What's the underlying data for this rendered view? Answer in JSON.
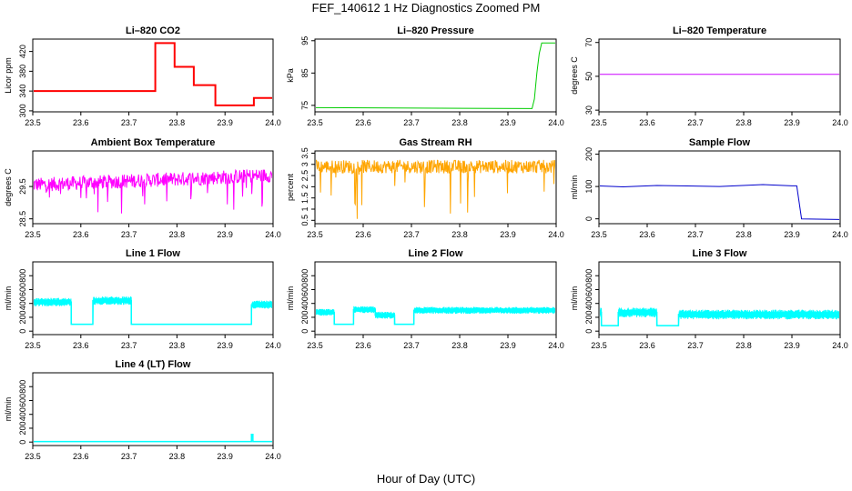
{
  "figure": {
    "title": "FEF_140612  1 Hz Diagnostics Zoomed PM",
    "xlabel": "Hour of Day (UTC)"
  },
  "chart_data": [
    {
      "type": "line",
      "title": "Li–820 CO2",
      "ylabel": "Licor ppm",
      "color": "#ff0000",
      "xlim": [
        23.5,
        24.0
      ],
      "xticks": [
        "23.5",
        "23.6",
        "23.7",
        "23.8",
        "23.9",
        "24.0"
      ],
      "ylim": [
        298,
        445
      ],
      "yticks": [
        300,
        340,
        380,
        420
      ],
      "series": [
        {
          "name": "CO2",
          "pattern": "step",
          "x": [
            23.5,
            23.755,
            23.755,
            23.795,
            23.795,
            23.835,
            23.835,
            23.88,
            23.88,
            23.96,
            23.96,
            24.0
          ],
          "y": [
            340,
            340,
            437,
            437,
            389,
            389,
            352,
            352,
            311,
            311,
            326,
            326
          ]
        }
      ]
    },
    {
      "type": "line",
      "title": "Li–820 Pressure",
      "ylabel": "kPa",
      "color": "#00cc00",
      "xlim": [
        23.5,
        24.0
      ],
      "xticks": [
        "23.5",
        "23.6",
        "23.7",
        "23.8",
        "23.9",
        "24.0"
      ],
      "ylim": [
        73,
        95.5
      ],
      "yticks": [
        75,
        85,
        95
      ],
      "series": [
        {
          "name": "Pressure",
          "pattern": "smooth",
          "x": [
            23.5,
            23.95,
            23.955,
            23.96,
            23.965,
            23.97,
            24.0
          ],
          "y": [
            74.3,
            74.0,
            77,
            85,
            91,
            94.3,
            94.3
          ]
        }
      ]
    },
    {
      "type": "line",
      "title": "Li–820 Temperature",
      "ylabel": "degrees C",
      "color": "#cc00ff",
      "xlim": [
        23.5,
        24.0
      ],
      "xticks": [
        "23.5",
        "23.6",
        "23.7",
        "23.8",
        "23.9",
        "24.0"
      ],
      "ylim": [
        29,
        72
      ],
      "yticks": [
        30,
        50,
        70
      ],
      "series": [
        {
          "name": "Temperature",
          "pattern": "smooth",
          "x": [
            23.5,
            24.0
          ],
          "y": [
            51.2,
            51.2
          ]
        }
      ]
    },
    {
      "type": "line",
      "title": "Ambient Box Temperature",
      "ylabel": "degrees C",
      "color": "#ff00ff",
      "xlim": [
        23.5,
        24.0
      ],
      "xticks": [
        "23.5",
        "23.6",
        "23.7",
        "23.8",
        "23.9",
        "24.0"
      ],
      "ylim": [
        28.35,
        30.6
      ],
      "yticks": [
        28.5,
        29.5
      ],
      "series": [
        {
          "name": "Box Temp",
          "pattern": "noise",
          "x": [
            23.5,
            24.0
          ],
          "y": [
            29.55,
            29.85
          ],
          "spread": 0.22,
          "spike_down": 0.9
        }
      ]
    },
    {
      "type": "line",
      "title": "Gas Stream RH",
      "ylabel": "percent",
      "color": "#ffa500",
      "xlim": [
        23.5,
        24.0
      ],
      "xticks": [
        "23.5",
        "23.6",
        "23.7",
        "23.8",
        "23.9",
        "24.0"
      ],
      "ylim": [
        0.35,
        3.6
      ],
      "yticks": [
        0.5,
        1.0,
        1.5,
        2.0,
        2.5,
        3.0,
        3.5
      ],
      "series": [
        {
          "name": "RH",
          "pattern": "noise",
          "x": [
            23.5,
            24.0
          ],
          "y": [
            2.9,
            2.9
          ],
          "spread": 0.3,
          "spike_down": 2.3
        }
      ]
    },
    {
      "type": "line",
      "title": "Sample Flow",
      "ylabel": "ml/min",
      "color": "#0000cc",
      "xlim": [
        23.5,
        24.0
      ],
      "xticks": [
        "23.5",
        "23.6",
        "23.7",
        "23.8",
        "23.9",
        "24.0"
      ],
      "ylim": [
        -15,
        210
      ],
      "yticks": [
        0,
        100,
        200
      ],
      "series": [
        {
          "name": "Sample Flow",
          "pattern": "smooth",
          "x": [
            23.5,
            23.55,
            23.62,
            23.75,
            23.84,
            23.9,
            23.91,
            23.92,
            24.0
          ],
          "y": [
            102,
            99,
            103,
            100,
            106,
            102,
            102,
            0,
            -2
          ]
        }
      ]
    },
    {
      "type": "line",
      "title": "Line 1 Flow",
      "ylabel": "ml/min",
      "color": "#00ffff",
      "xlim": [
        23.5,
        24.0
      ],
      "xticks": [
        "23.5",
        "23.6",
        "23.7",
        "23.8",
        "23.9",
        "24.0"
      ],
      "ylim": [
        -50,
        1000
      ],
      "yticks": [
        0,
        200,
        400,
        600,
        800
      ],
      "series": [
        {
          "name": "Line 1",
          "pattern": "step",
          "x": [
            23.5,
            23.58,
            23.58,
            23.625,
            23.625,
            23.705,
            23.705,
            23.955,
            23.955,
            24.0
          ],
          "y": [
            420,
            420,
            100,
            100,
            440,
            440,
            100,
            100,
            380,
            380
          ],
          "band": 60
        }
      ]
    },
    {
      "type": "line",
      "title": "Line 2 Flow",
      "ylabel": "ml/min",
      "color": "#00ffff",
      "xlim": [
        23.5,
        24.0
      ],
      "xticks": [
        "23.5",
        "23.6",
        "23.7",
        "23.8",
        "23.9",
        "24.0"
      ],
      "ylim": [
        -50,
        1000
      ],
      "yticks": [
        0,
        200,
        400,
        600,
        800
      ],
      "series": [
        {
          "name": "Line 2",
          "pattern": "step",
          "x": [
            23.5,
            23.54,
            23.54,
            23.58,
            23.58,
            23.625,
            23.625,
            23.665,
            23.665,
            23.705,
            23.705,
            24.0
          ],
          "y": [
            270,
            270,
            100,
            100,
            310,
            310,
            230,
            230,
            100,
            100,
            300,
            300
          ],
          "band": 50
        }
      ]
    },
    {
      "type": "line",
      "title": "Line 3 Flow",
      "ylabel": "ml/min",
      "color": "#00ffff",
      "xlim": [
        23.5,
        24.0
      ],
      "xticks": [
        "23.5",
        "23.6",
        "23.7",
        "23.8",
        "23.9",
        "24.0"
      ],
      "ylim": [
        -50,
        1000
      ],
      "yticks": [
        0,
        200,
        400,
        600,
        800
      ],
      "series": [
        {
          "name": "Line 3",
          "pattern": "step",
          "x": [
            23.5,
            23.505,
            23.505,
            23.54,
            23.54,
            23.62,
            23.62,
            23.665,
            23.665,
            24.0
          ],
          "y": [
            270,
            270,
            80,
            80,
            270,
            270,
            80,
            80,
            240,
            240
          ],
          "band": 70
        }
      ]
    },
    {
      "type": "line",
      "title": "Line 4 (LT) Flow",
      "ylabel": "ml/min",
      "color": "#00ffff",
      "xlim": [
        23.5,
        24.0
      ],
      "xticks": [
        "23.5",
        "23.6",
        "23.7",
        "23.8",
        "23.9",
        "24.0"
      ],
      "ylim": [
        -50,
        1000
      ],
      "yticks": [
        0,
        200,
        400,
        600,
        800
      ],
      "series": [
        {
          "name": "Line 4",
          "pattern": "step",
          "x": [
            23.5,
            23.955,
            23.955,
            23.958,
            23.958,
            24.0
          ],
          "y": [
            8,
            8,
            110,
            110,
            8,
            8
          ],
          "band": 6
        }
      ]
    }
  ]
}
